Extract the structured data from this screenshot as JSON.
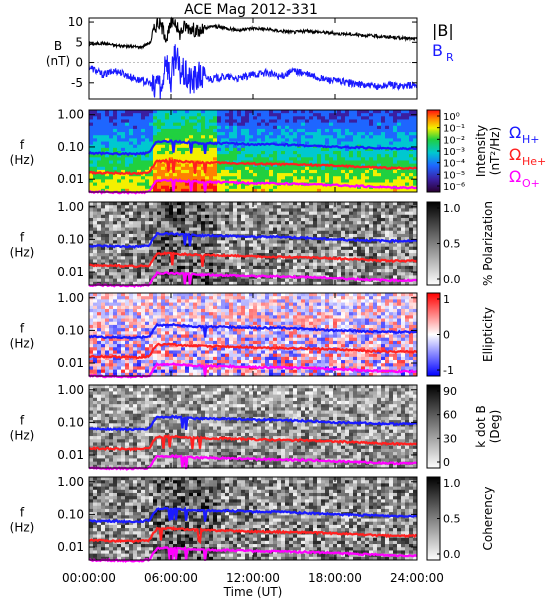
{
  "title": "ACE Mag 2012-331",
  "colors": {
    "Btotal": "#000000",
    "BR": "#1a1aff",
    "H+": "#1a1aff",
    "He+": "#ff2020",
    "O+": "#ff00ff"
  },
  "x_axis": {
    "label": "Time (UT)",
    "ticks": [
      "00:00:00",
      "06:00:00",
      "12:00:00",
      "18:00:00",
      "24:00:00"
    ]
  },
  "chart_data": [
    {
      "type": "line",
      "panel": "magnetic-field",
      "ylabel": "B (nT)",
      "ylabel_lines": [
        "B",
        "(nT)"
      ],
      "ylim": [
        -9,
        11
      ],
      "yticks": [
        "10",
        "5",
        "0",
        "-5"
      ],
      "xlim": [
        0,
        24
      ],
      "legend": [
        "|B|",
        "BR"
      ],
      "legend_main": [
        "|B|",
        "B"
      ],
      "legend_sub": [
        "",
        "R"
      ],
      "series": [
        {
          "name": "|B|",
          "x": [
            0,
            1,
            2,
            3,
            3.8,
            4.5,
            4.7,
            5.0,
            5.3,
            5.7,
            6.0,
            6.3,
            6.6,
            7.0,
            7.5,
            8,
            9,
            10,
            11,
            12,
            13,
            14,
            15,
            16,
            17,
            18,
            19,
            20,
            21,
            22,
            23,
            24
          ],
          "y": [
            4.5,
            4.8,
            4.2,
            4.0,
            3.8,
            5.0,
            7.5,
            10.0,
            9.0,
            6.0,
            9.5,
            10.5,
            7.0,
            9.0,
            8.5,
            7.5,
            9.0,
            8.5,
            8.0,
            8.5,
            8.2,
            7.8,
            7.5,
            7.8,
            7.5,
            7.2,
            7.0,
            6.8,
            6.5,
            6.3,
            6.0,
            5.8
          ]
        },
        {
          "name": "BR",
          "x": [
            0,
            1,
            2,
            3,
            3.8,
            4.5,
            4.8,
            5.0,
            5.3,
            5.6,
            6.0,
            6.3,
            6.6,
            7.0,
            7.5,
            8,
            9,
            10,
            11,
            12,
            13,
            14,
            15,
            16,
            17,
            18,
            19,
            20,
            21,
            22,
            23,
            24
          ],
          "y": [
            -1.0,
            -3.0,
            -2.0,
            -3.5,
            -4.5,
            -5.0,
            -7.5,
            -3.0,
            -8.0,
            2.0,
            -5.0,
            3.0,
            -2.0,
            -3.0,
            -5.0,
            -3.5,
            -4.0,
            -3.5,
            -4.0,
            -3.0,
            -2.5,
            -3.5,
            -2.0,
            -3.0,
            -4.0,
            -4.5,
            -5.0,
            -5.5,
            -6.0,
            -5.5,
            -5.8,
            -5.5
          ]
        }
      ]
    },
    {
      "type": "heatmap",
      "panel": "power-spectrum",
      "ylabel": "f (Hz)",
      "ylabel_lines": [
        "f",
        "(Hz)"
      ],
      "yscale": "log",
      "ylim": [
        0.004,
        1.4
      ],
      "yticks": [
        "1.00",
        "0.10",
        "0.01"
      ],
      "colorbar_label": "Intensity (nT²/Hz)",
      "colorbar_lines": [
        "Intensity",
        "(nT²/Hz)"
      ],
      "colorbar_scale": "rainbow",
      "colorbar_ticks": [
        "10⁰",
        "10⁻¹",
        "10⁻²",
        "10⁻³",
        "10⁻⁴",
        "10⁻⁵",
        "10⁻⁶"
      ],
      "legend": [
        "ΩH+",
        "ΩHe+",
        "ΩO+"
      ],
      "legend_main": [
        "Ω",
        "Ω",
        "Ω"
      ],
      "legend_sub": [
        "H+",
        "He+",
        "O+"
      ]
    },
    {
      "type": "heatmap",
      "panel": "polarization",
      "ylabel": "f (Hz)",
      "ylabel_lines": [
        "f",
        "(Hz)"
      ],
      "yscale": "log",
      "ylim": [
        0.004,
        1.4
      ],
      "yticks": [
        "1.00",
        "0.10",
        "0.01"
      ],
      "colorbar_label": "% Polarization",
      "colorbar_lines": [
        "% Polarization"
      ],
      "colorbar_scale": "gray",
      "colorbar_ticks": [
        "1.0",
        "0.5",
        "0.0"
      ]
    },
    {
      "type": "heatmap",
      "panel": "ellipticity",
      "ylabel": "f (Hz)",
      "ylabel_lines": [
        "f",
        "(Hz)"
      ],
      "yscale": "log",
      "ylim": [
        0.004,
        1.4
      ],
      "yticks": [
        "1.00",
        "0.10",
        "0.01"
      ],
      "colorbar_label": "Ellipticity",
      "colorbar_lines": [
        "Ellipticity"
      ],
      "colorbar_scale": "blue-white-red",
      "colorbar_ticks": [
        "1",
        "0",
        "-1"
      ]
    },
    {
      "type": "heatmap",
      "panel": "wave-normal-angle",
      "ylabel": "f (Hz)",
      "ylabel_lines": [
        "f",
        "(Hz)"
      ],
      "yscale": "log",
      "ylim": [
        0.004,
        1.4
      ],
      "yticks": [
        "1.00",
        "0.10",
        "0.01"
      ],
      "colorbar_label": "k dot B (Deg)",
      "colorbar_lines": [
        "k dot B",
        "(Deg)"
      ],
      "colorbar_scale": "gray",
      "colorbar_ticks": [
        "90",
        "60",
        "30",
        "0"
      ]
    },
    {
      "type": "heatmap",
      "panel": "coherency",
      "ylabel": "f (Hz)",
      "ylabel_lines": [
        "f",
        "(Hz)"
      ],
      "yscale": "log",
      "ylim": [
        0.004,
        1.4
      ],
      "yticks": [
        "1.00",
        "0.10",
        "0.01"
      ],
      "colorbar_label": "Coherency",
      "colorbar_lines": [
        "Coherency"
      ],
      "colorbar_scale": "gray",
      "colorbar_ticks": [
        "1.0",
        "0.5",
        "0.0"
      ]
    }
  ],
  "gyrofrequency_lines": {
    "x": [
      0,
      3.5,
      4.4,
      4.8,
      5.0,
      5.3,
      5.5,
      6,
      7,
      8,
      10,
      12,
      14,
      16,
      18,
      20,
      22,
      24
    ],
    "H+": [
      0.064,
      0.06,
      0.065,
      0.12,
      0.15,
      0.14,
      0.15,
      0.15,
      0.14,
      0.13,
      0.13,
      0.12,
      0.12,
      0.11,
      0.1,
      0.095,
      0.09,
      0.09
    ],
    "He+": [
      0.016,
      0.015,
      0.016,
      0.03,
      0.037,
      0.035,
      0.037,
      0.037,
      0.035,
      0.033,
      0.032,
      0.03,
      0.029,
      0.028,
      0.026,
      0.024,
      0.022,
      0.022
    ],
    "O+": [
      0.004,
      0.0038,
      0.004,
      0.0075,
      0.0093,
      0.0088,
      0.0093,
      0.0093,
      0.0088,
      0.0082,
      0.008,
      0.0075,
      0.0073,
      0.007,
      0.0065,
      0.006,
      0.0056,
      0.0055
    ]
  }
}
